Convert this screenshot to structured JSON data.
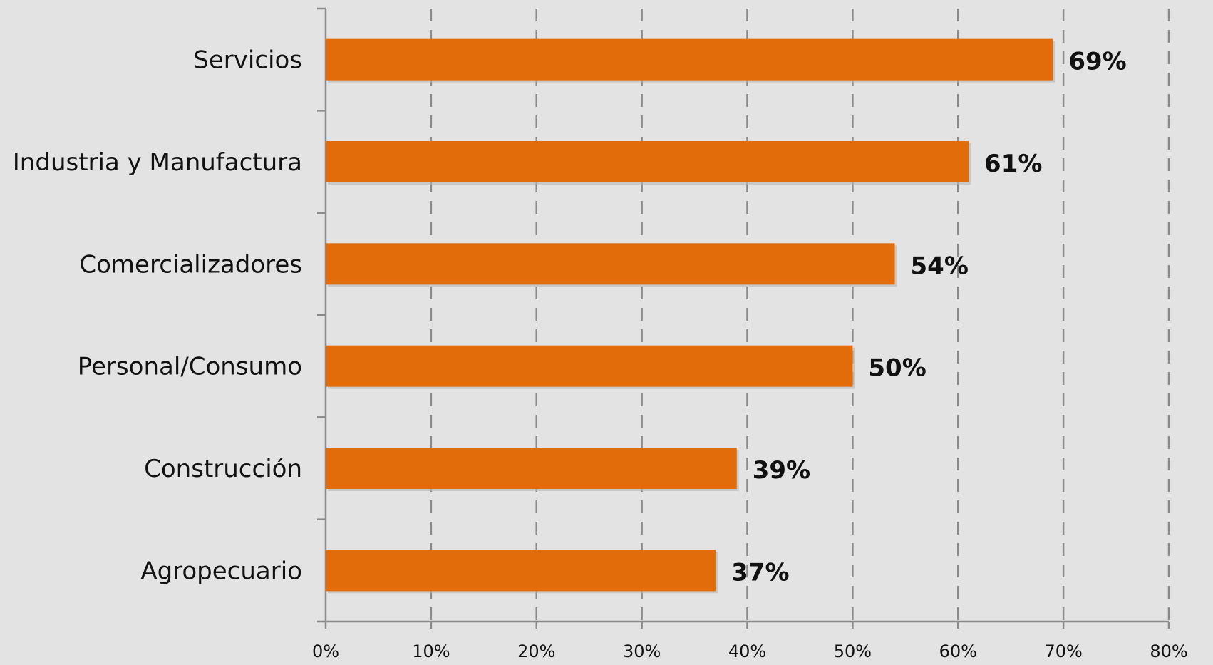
{
  "chart_data": {
    "type": "bar",
    "orientation": "horizontal",
    "categories": [
      "Servicios",
      "Industria y Manufactura",
      "Comercializadores",
      "Personal/Consumo",
      "Construcción",
      "Agropecuario"
    ],
    "values": [
      69,
      61,
      54,
      50,
      39,
      37
    ],
    "value_labels": [
      "69%",
      "61%",
      "54%",
      "50%",
      "39%",
      "37%"
    ],
    "xlim": [
      0,
      80
    ],
    "x_ticks": [
      0,
      10,
      20,
      30,
      40,
      50,
      60,
      70,
      80
    ],
    "x_tick_labels": [
      "0%",
      "10%",
      "20%",
      "30%",
      "40%",
      "50%",
      "60%",
      "70%",
      "80%"
    ],
    "title": "",
    "xlabel": "",
    "ylabel": "",
    "grid": "vertical dashed",
    "legend": "none",
    "colors": {
      "bar": "#e36c0a",
      "background": "#e3e3e3",
      "grid": "#8a8a8a",
      "axis": "#8a8a8a",
      "text": "#111111"
    }
  }
}
